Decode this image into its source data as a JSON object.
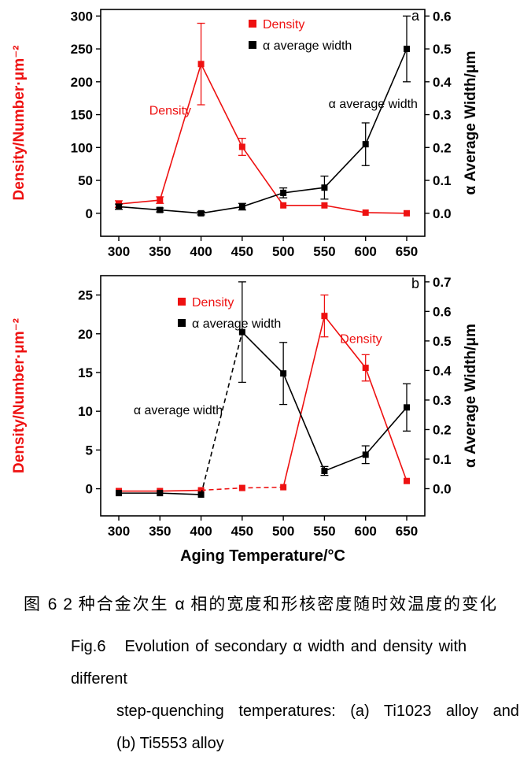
{
  "figure": {
    "xlabel": "Aging Temperature/°C",
    "caption_cn": "图 6  2 种合金次生 α 相的宽度和形核密度随时效温度的变化",
    "caption_en": {
      "fig_label": "Fig.6",
      "line1": "Evolution of secondary α width and density with different",
      "line2": "step-quenching temperatures: (a) Ti1023 alloy and",
      "line3": "(b) Ti5553 alloy"
    }
  },
  "colors": {
    "density_red": "#ee1111",
    "width_black": "#000000"
  },
  "chart_data": [
    {
      "type": "line",
      "panel_label": "a",
      "x": [
        300,
        350,
        400,
        450,
        500,
        550,
        600,
        650
      ],
      "x_ticks": [
        300,
        350,
        400,
        450,
        500,
        550,
        600,
        650
      ],
      "x_range": [
        278,
        672
      ],
      "left_axis": {
        "label": "Density/Number·μm⁻²",
        "color": "#ee1111",
        "ticks": [
          0,
          50,
          100,
          150,
          200,
          250,
          300
        ],
        "decimals": 0,
        "min": -35,
        "max": 310
      },
      "right_axis": {
        "label": "α Average Width/μm",
        "color": "#000000",
        "ticks": [
          0,
          0.1,
          0.2,
          0.3,
          0.4,
          0.5,
          0.6
        ],
        "decimals": 1,
        "min": -0.07,
        "max": 0.62
      },
      "legend": [
        {
          "label": "Density",
          "color": "#ee1111"
        },
        {
          "label": "α average width",
          "color": "#000000"
        }
      ],
      "series": [
        {
          "name": "Density",
          "axis": "left",
          "color": "#ee1111",
          "values": [
            14,
            20,
            227,
            101,
            12,
            12,
            1,
            0
          ],
          "errors": [
            5,
            5,
            62,
            13,
            0,
            0,
            0,
            0
          ],
          "segments": [
            {
              "i0": 0,
              "i1": 7,
              "dash": false
            }
          ]
        },
        {
          "name": "α average width",
          "axis": "right",
          "color": "#000000",
          "values": [
            0.02,
            0.01,
            0,
            0.02,
            0.062,
            0.078,
            0.21,
            0.5
          ],
          "errors": [
            0.008,
            0.006,
            0.005,
            0.01,
            0.015,
            0.035,
            0.065,
            0.1
          ],
          "segments": [
            {
              "i0": 0,
              "i1": 7,
              "dash": false
            }
          ]
        }
      ],
      "annotations": [
        {
          "text": "Density",
          "color": "#ee1111",
          "t": 337,
          "v": 150,
          "axis": "left"
        },
        {
          "text": "α average width",
          "color": "#000000",
          "t": 555,
          "v": 0.32,
          "axis": "right"
        }
      ]
    },
    {
      "type": "line",
      "panel_label": "b",
      "x": [
        300,
        350,
        400,
        450,
        500,
        550,
        600,
        650
      ],
      "x_ticks": [
        300,
        350,
        400,
        450,
        500,
        550,
        600,
        650
      ],
      "x_range": [
        278,
        672
      ],
      "left_axis": {
        "label": "Density/Number·μm⁻²",
        "color": "#ee1111",
        "ticks": [
          0,
          5,
          10,
          15,
          20,
          25
        ],
        "decimals": 0,
        "min": -3.5,
        "max": 27.5
      },
      "right_axis": {
        "label": "α Average Width/μm",
        "color": "#000000",
        "ticks": [
          0,
          0.1,
          0.2,
          0.3,
          0.4,
          0.5,
          0.6,
          0.7
        ],
        "decimals": 1,
        "min": -0.092,
        "max": 0.721
      },
      "legend": [
        {
          "label": "Density",
          "color": "#ee1111"
        },
        {
          "label": "α average width",
          "color": "#000000"
        }
      ],
      "series": [
        {
          "name": "Density",
          "axis": "left",
          "color": "#ee1111",
          "values": [
            -0.3,
            -0.3,
            -0.2,
            0.1,
            0.2,
            22.3,
            15.6,
            1.0
          ],
          "errors": [
            0,
            0,
            0,
            0,
            0,
            2.7,
            1.7,
            0
          ],
          "segments": [
            {
              "i0": 0,
              "i1": 2,
              "dash": false
            },
            {
              "i0": 2,
              "i1": 4,
              "dash": true
            },
            {
              "i0": 4,
              "i1": 7,
              "dash": false
            }
          ]
        },
        {
          "name": "α average width",
          "axis": "right",
          "color": "#000000",
          "values": [
            -0.015,
            -0.015,
            -0.02,
            0.53,
            0.39,
            0.06,
            0.115,
            0.275
          ],
          "errors": [
            0,
            0,
            0,
            0.17,
            0.105,
            0.015,
            0.03,
            0.08
          ],
          "segments": [
            {
              "i0": 0,
              "i1": 2,
              "dash": false
            },
            {
              "i0": 2,
              "i1": 3,
              "dash": true
            },
            {
              "i0": 3,
              "i1": 7,
              "dash": false
            }
          ]
        }
      ],
      "annotations": [
        {
          "text": "α average width",
          "color": "#000000",
          "t": 318,
          "v": 9.6,
          "axis": "left"
        },
        {
          "text": "Density",
          "color": "#ee1111",
          "t": 569,
          "v": 18.8,
          "axis": "left"
        }
      ]
    }
  ]
}
